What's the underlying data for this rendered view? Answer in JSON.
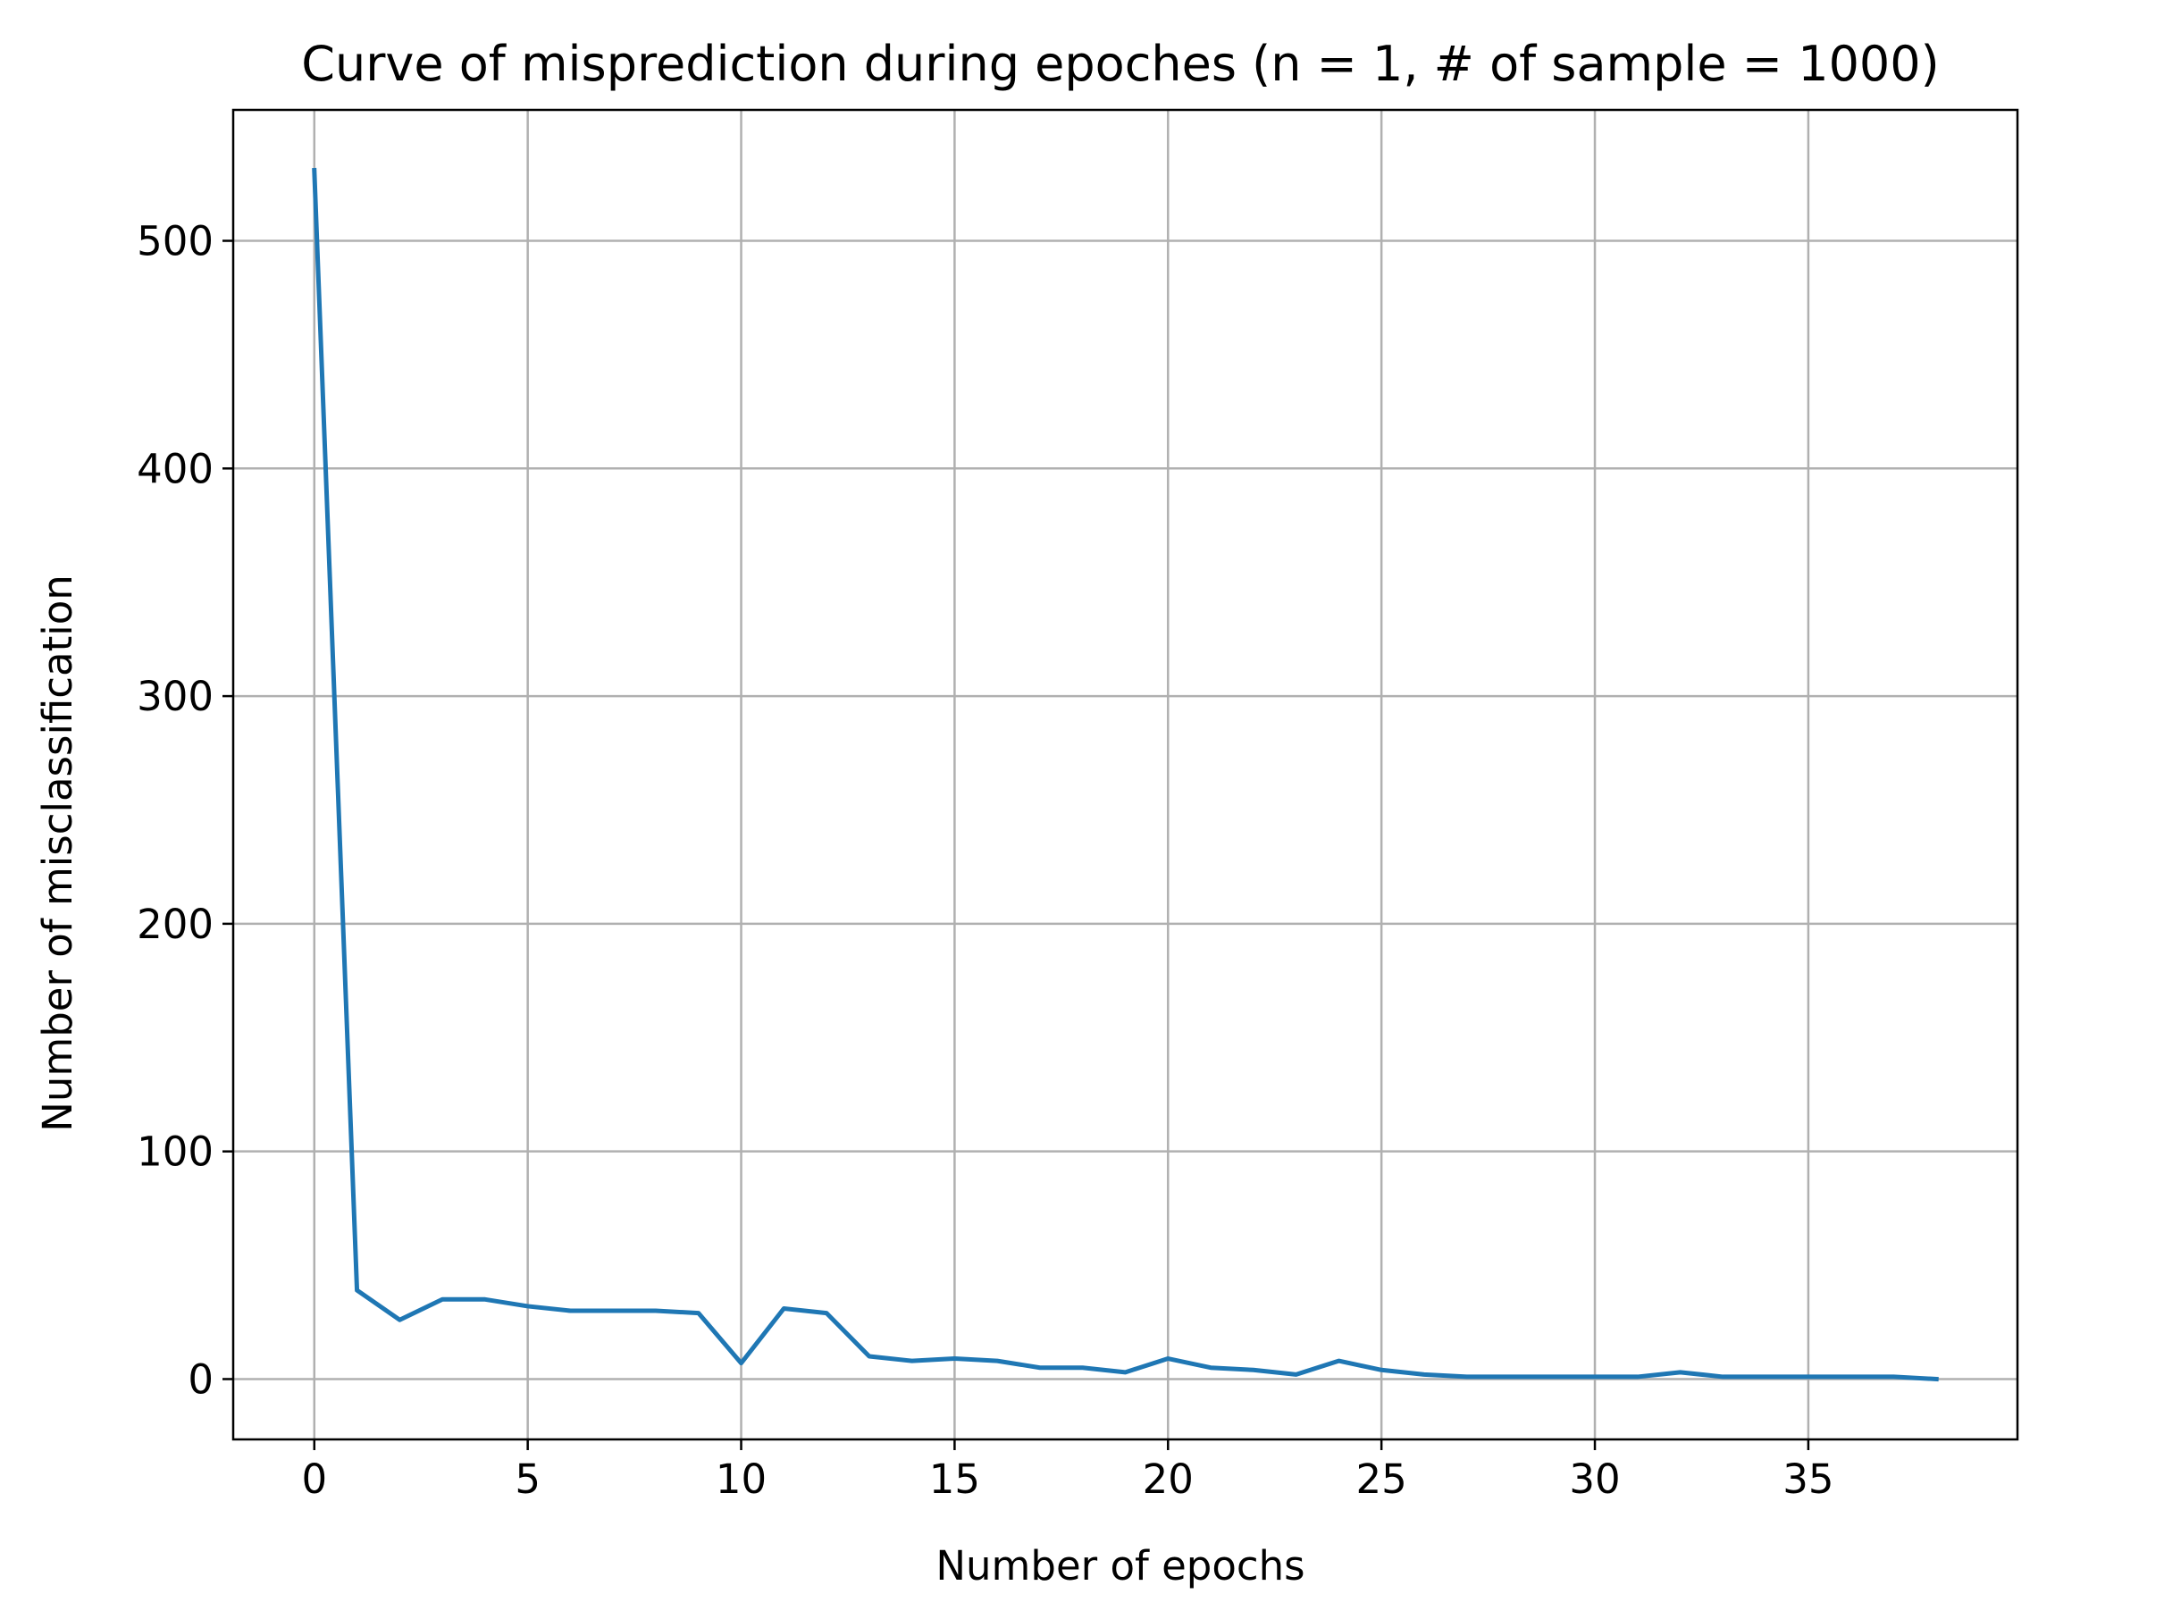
{
  "chart_data": {
    "type": "line",
    "title": "Curve of misprediction during epoches (n = 1, # of sample = 1000)",
    "xlabel": "Number of epochs",
    "ylabel": "Number of misclassification",
    "xlim": [
      -1.9,
      39.9
    ],
    "ylim": [
      -26.5,
      557.5
    ],
    "xticks": [
      0,
      5,
      10,
      15,
      20,
      25,
      30,
      35
    ],
    "xtick_labels": [
      "0",
      "5",
      "10",
      "15",
      "20",
      "25",
      "30",
      "35"
    ],
    "yticks": [
      0,
      100,
      200,
      300,
      400,
      500
    ],
    "ytick_labels": [
      "0",
      "100",
      "200",
      "300",
      "400",
      "500"
    ],
    "grid": true,
    "legend": "none",
    "series": [
      {
        "color": "#1f77b4",
        "x": [
          0,
          1,
          2,
          3,
          4,
          5,
          6,
          7,
          8,
          9,
          10,
          11,
          12,
          13,
          14,
          15,
          16,
          17,
          18,
          19,
          20,
          21,
          22,
          23,
          24,
          25,
          26,
          27,
          28,
          29,
          30,
          31,
          32,
          33,
          34,
          35,
          36,
          37,
          38
        ],
        "y": [
          531,
          39,
          26,
          35,
          35,
          32,
          30,
          30,
          30,
          29,
          7,
          31,
          29,
          10,
          8,
          9,
          8,
          5,
          5,
          3,
          9,
          5,
          4,
          2,
          8,
          4,
          2,
          1,
          1,
          1,
          1,
          1,
          3,
          1,
          1,
          1,
          1,
          1,
          0
        ]
      }
    ]
  }
}
